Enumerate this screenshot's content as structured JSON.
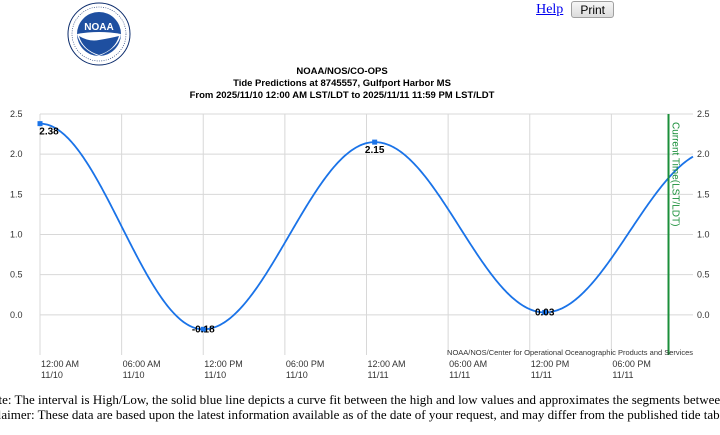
{
  "header": {
    "logo_text": "NOAA",
    "logo_ring_text": "NATIONAL OCEANIC AND ATMOSPHERIC ADMINISTRATION",
    "logo_bottom_text": "U.S. DEPARTMENT OF COMMERCE",
    "help_label": "Help",
    "print_label": "Print",
    "colors": {
      "link": "#0000ee",
      "logo_blue": "#1e4fa0",
      "logo_navy": "#0b2b6b"
    }
  },
  "chart_titles": {
    "line1": "NOAA/NOS/CO-OPS",
    "line2": "Tide Predictions at 8745557, Gulfport Harbor MS",
    "line3": "From 2025/11/10 12:00 AM LST/LDT to 2025/11/11 11:59 PM LST/LDT"
  },
  "chart_data": {
    "type": "line",
    "title": "NOAA/NOS/CO-OPS",
    "subtitle": "Tide Predictions at 8745557, Gulfport Harbor MS",
    "x_range_hours": [
      0,
      48
    ],
    "ylim": [
      -0.5,
      2.5
    ],
    "y_ticks": [
      0.0,
      0.5,
      1.0,
      1.5,
      2.0,
      2.5
    ],
    "y_tick_labels": [
      "0.0",
      "0.5",
      "1.0",
      "1.5",
      "2.0",
      "2.5"
    ],
    "x_ticks": [
      {
        "hour": 0,
        "label": "12:00 AM",
        "date": "11/10"
      },
      {
        "hour": 6,
        "label": "06:00 AM",
        "date": "11/10"
      },
      {
        "hour": 12,
        "label": "12:00 PM",
        "date": "11/10"
      },
      {
        "hour": 18,
        "label": "06:00 PM",
        "date": "11/10"
      },
      {
        "hour": 24,
        "label": "12:00 AM",
        "date": "11/11"
      },
      {
        "hour": 30,
        "label": "06:00 AM",
        "date": "11/11"
      },
      {
        "hour": 36,
        "label": "12:00 PM",
        "date": "11/11"
      },
      {
        "hour": 42,
        "label": "06:00 PM",
        "date": "11/11"
      }
    ],
    "extremes": [
      {
        "hour": 0.0,
        "value": 2.38,
        "label": "2.38",
        "type": "H"
      },
      {
        "hour": 12.0,
        "value": -0.18,
        "label": "-0.18",
        "type": "L"
      },
      {
        "hour": 24.6,
        "value": 2.15,
        "label": "2.15",
        "type": "H"
      },
      {
        "hour": 37.1,
        "value": 0.03,
        "label": "0.03",
        "type": "L"
      },
      {
        "hour": 49.6,
        "value": 2.05,
        "label": "",
        "type": "H"
      }
    ],
    "series": [
      {
        "color": "#1a73e8"
      }
    ],
    "current_time_hour": 46.2,
    "current_time_label": "Current Time(LST/LDT)",
    "current_time_color": "#1a8f3a",
    "credit": "NOAA/NOS/Center for Operational Oceanographic Products and Services",
    "grid": true,
    "grid_color": "#d8d8d8"
  },
  "notes": {
    "note": "ote: The interval is High/Low, the solid blue line depicts a curve fit between the high and low values and approximates the segments between.",
    "disclaimer": "claimer: These data are based upon the latest information available as of the date of your request, and may differ from the published tide tables."
  }
}
